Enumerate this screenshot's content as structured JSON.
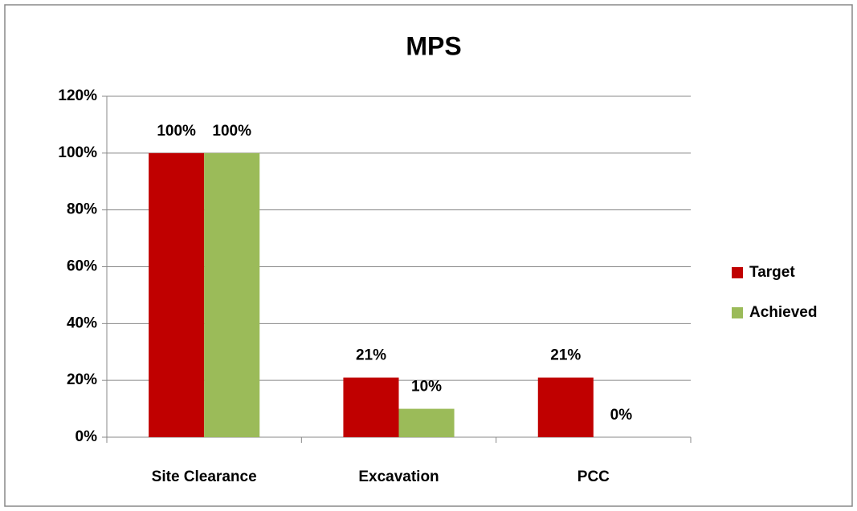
{
  "chart_data": {
    "type": "bar",
    "title": "MPS",
    "categories": [
      "Site Clearance",
      "Excavation",
      "PCC"
    ],
    "series": [
      {
        "name": "Target",
        "color": "#c00000",
        "values": [
          100,
          21,
          21
        ],
        "value_labels": [
          "100%",
          "21%",
          "21%"
        ]
      },
      {
        "name": "Achieved",
        "color": "#9bbb59",
        "values": [
          100,
          10,
          0
        ],
        "value_labels": [
          "100%",
          "10%",
          "0%"
        ]
      }
    ],
    "ylim": [
      0,
      120
    ],
    "yticks": [
      {
        "value": 0,
        "label": "0%"
      },
      {
        "value": 20,
        "label": "20%"
      },
      {
        "value": 40,
        "label": "40%"
      },
      {
        "value": 60,
        "label": "60%"
      },
      {
        "value": 80,
        "label": "80%"
      },
      {
        "value": 100,
        "label": "100%"
      },
      {
        "value": 120,
        "label": "120%"
      }
    ],
    "grid": true,
    "legend": "right"
  }
}
